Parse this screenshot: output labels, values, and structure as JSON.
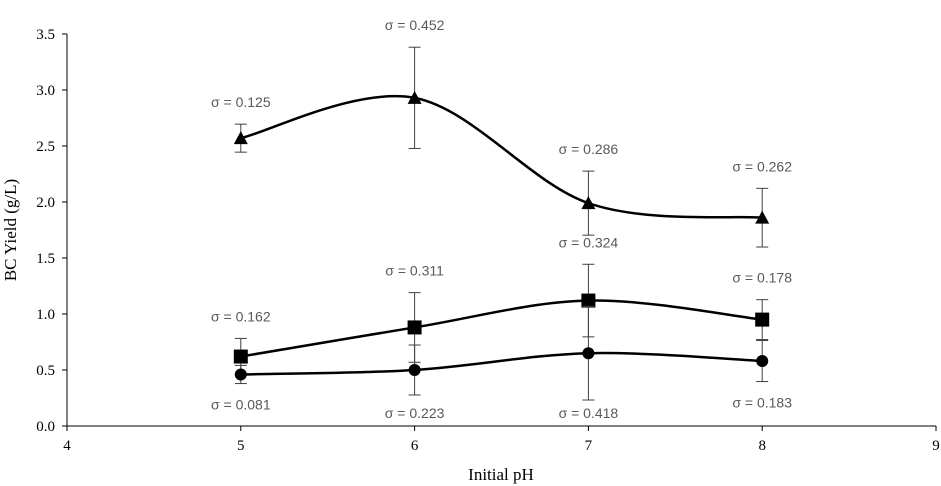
{
  "chart_data": {
    "type": "line",
    "xlabel": "Initial pH",
    "ylabel": "BC Yield  (g/L)",
    "xlim": [
      4,
      9
    ],
    "ylim": [
      0,
      3.5
    ],
    "x_ticks": [
      "4",
      "5",
      "6",
      "7",
      "8",
      "9"
    ],
    "y_ticks": [
      "0.0",
      "0.5",
      "1.0",
      "1.5",
      "2.0",
      "2.5",
      "3.0",
      "3.5"
    ],
    "grid": false,
    "legend": "none",
    "line_color": "#000000",
    "label_color": "#595959",
    "series": [
      {
        "marker": "triangle",
        "x": [
          5,
          6,
          7,
          8
        ],
        "y": [
          2.57,
          2.93,
          1.99,
          1.86
        ],
        "err": [
          0.125,
          0.452,
          0.286,
          0.262
        ],
        "err_labels": [
          "σ = 0.125",
          "σ = 0.452",
          "σ = 0.286",
          "σ = 0.262"
        ]
      },
      {
        "marker": "square",
        "x": [
          5,
          6,
          7,
          8
        ],
        "y": [
          0.62,
          0.88,
          1.12,
          0.95
        ],
        "err": [
          0.162,
          0.311,
          0.324,
          0.178
        ],
        "err_labels": [
          "σ = 0.162",
          "σ = 0.311",
          "σ = 0.324",
          "σ = 0.178"
        ]
      },
      {
        "marker": "circle",
        "x": [
          5,
          6,
          7,
          8
        ],
        "y": [
          0.46,
          0.5,
          0.65,
          0.58
        ],
        "err": [
          0.081,
          0.223,
          0.418,
          0.183
        ],
        "err_labels": [
          "σ = 0.081",
          "σ = 0.223",
          "σ = 0.418",
          "σ = 0.183"
        ]
      }
    ]
  }
}
